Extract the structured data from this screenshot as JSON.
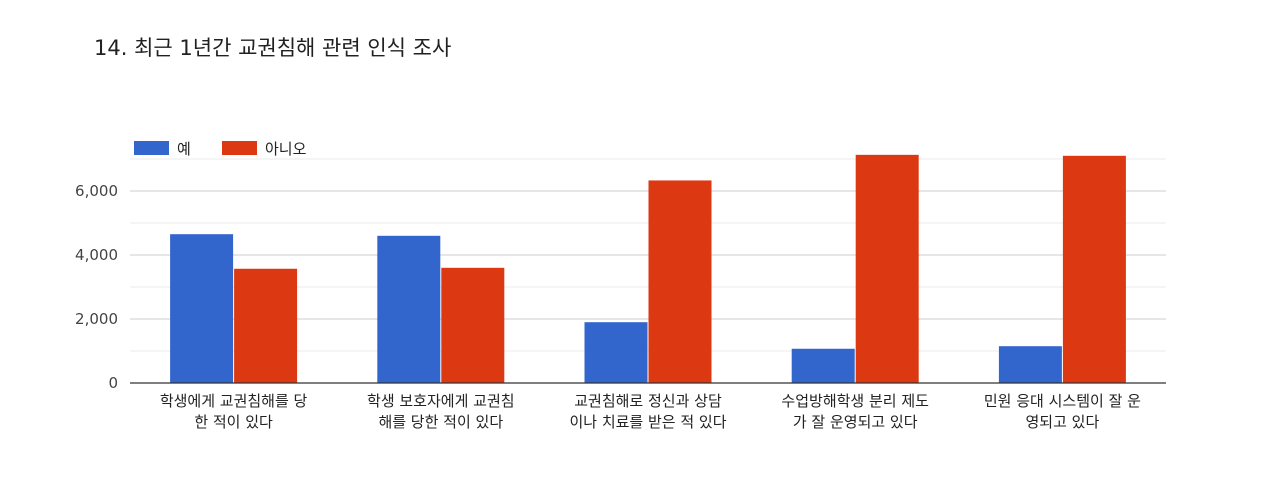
{
  "chart_data": {
    "type": "bar",
    "title": "14. 최근 1년간 교권침해 관련 인식 조사",
    "categories": [
      [
        "학생에게 교권침해를 당",
        "한 적이 있다"
      ],
      [
        "학생 보호자에게 교권침",
        "해를 당한 적이 있다"
      ],
      [
        "교권침해로 정신과 상담",
        "이나 치료를 받은 적 있다"
      ],
      [
        "수업방해학생 분리 제도",
        "가 잘 운영되고 있다"
      ],
      [
        "민원 응대 시스템이 잘 운",
        "영되고 있다"
      ]
    ],
    "series": [
      {
        "name": "예",
        "color": "#3366cc",
        "values": [
          4650,
          4600,
          1900,
          1070,
          1150
        ]
      },
      {
        "name": "아니오",
        "color": "#dc3912",
        "values": [
          3570,
          3600,
          6330,
          7130,
          7100
        ]
      }
    ],
    "ylim": [
      0,
      7000
    ],
    "yticks": [
      0,
      2000,
      4000,
      6000
    ],
    "ytick_labels": [
      "0",
      "2,000",
      "4,000",
      "6,000"
    ],
    "grid": true,
    "legend_position": "top-left"
  }
}
